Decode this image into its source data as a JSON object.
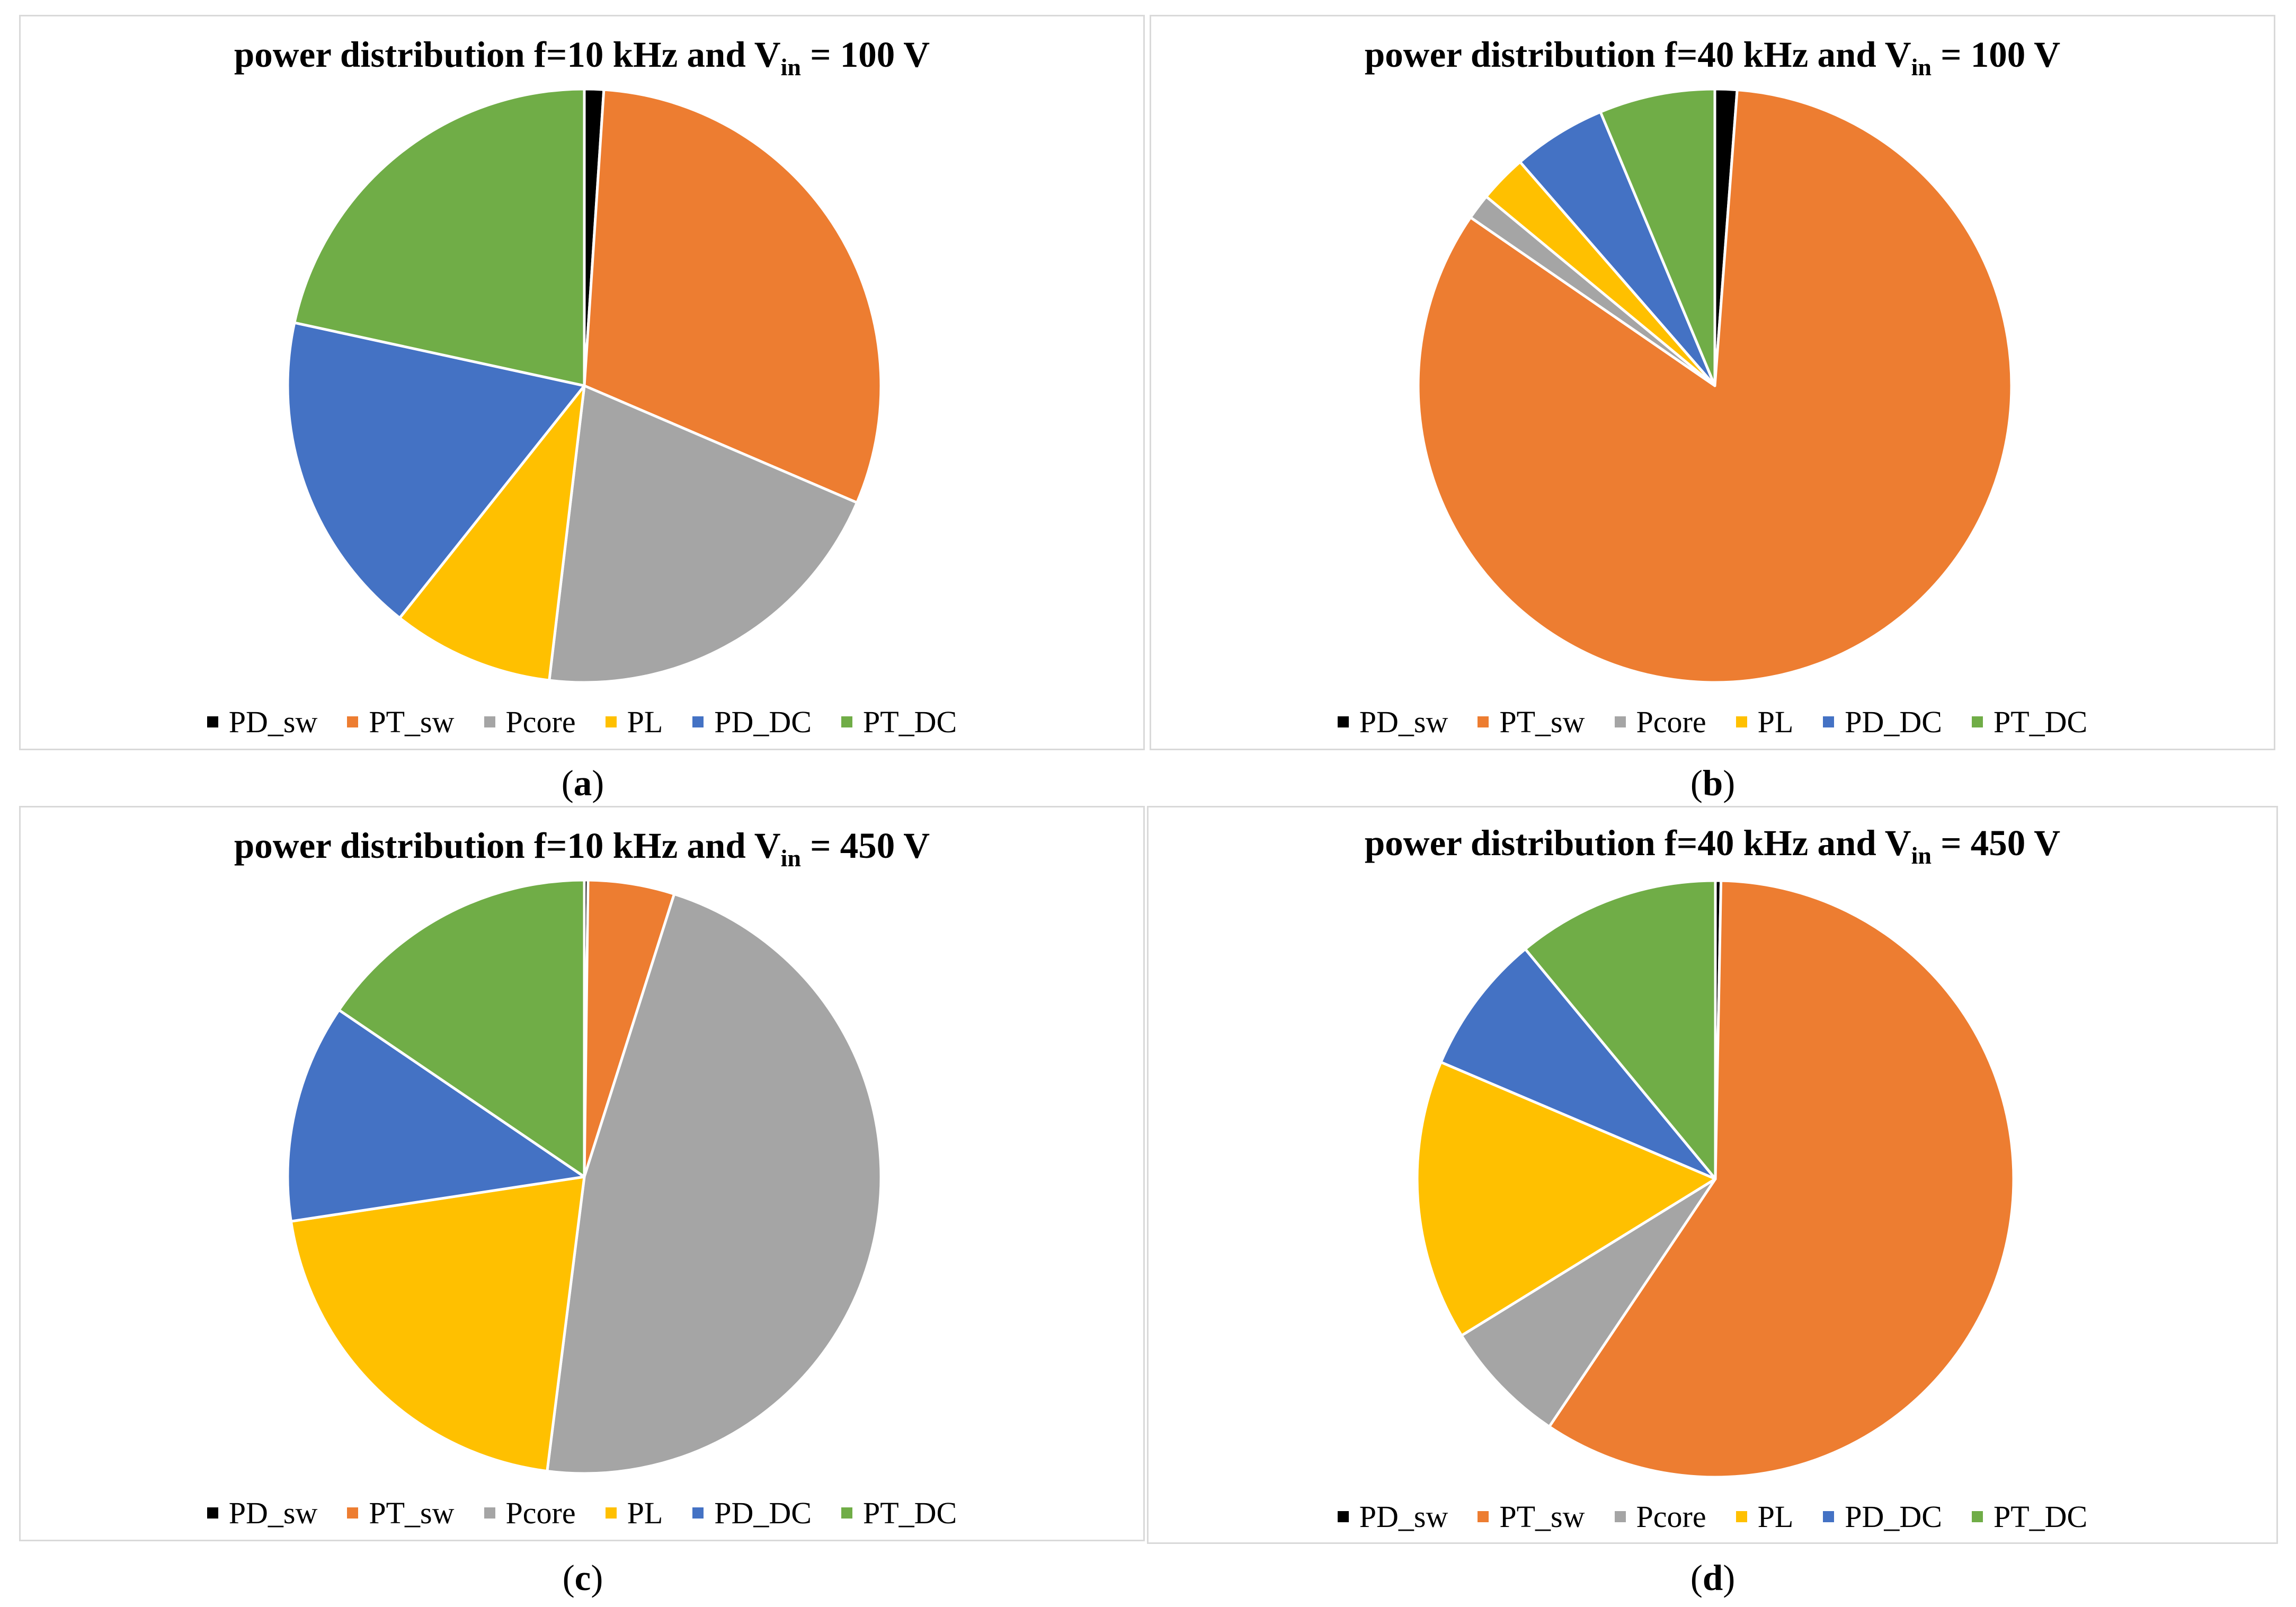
{
  "chart_data": [
    {
      "type": "pie",
      "title": "power distribution f=10 kHz and V",
      "title_sub": "in",
      "title_tail": " = 100 V",
      "caption_letter": "a",
      "categories": [
        "PD_sw",
        "PT_sw",
        "Pcore",
        "PL",
        "PD_DC",
        "PT_DC"
      ],
      "values": [
        1.0,
        29.0,
        19.5,
        8.4,
        16.9,
        20.6
      ],
      "colors": [
        "#000000",
        "#ED7D31",
        "#A5A5A5",
        "#FFC000",
        "#4472C4",
        "#70AD47"
      ]
    },
    {
      "type": "pie",
      "title": "power distribution f=40 kHz and V",
      "title_sub": "in",
      "title_tail": " = 100 V",
      "caption_letter": "b",
      "categories": [
        "PD_sw",
        "PT_sw",
        "Pcore",
        "PL",
        "PD_DC",
        "PT_DC"
      ],
      "values": [
        1.2,
        83.4,
        1.4,
        2.6,
        5.1,
        6.3
      ],
      "colors": [
        "#000000",
        "#ED7D31",
        "#A5A5A5",
        "#FFC000",
        "#4472C4",
        "#70AD47"
      ]
    },
    {
      "type": "pie",
      "title": "power distribution f=10 kHz and V",
      "title_sub": "in",
      "title_tail": " = 450 V",
      "caption_letter": "c",
      "categories": [
        "PD_sw",
        "PT_sw",
        "Pcore",
        "PL",
        "PD_DC",
        "PT_DC"
      ],
      "values": [
        0.2,
        4.7,
        47.1,
        20.6,
        11.9,
        15.5
      ],
      "colors": [
        "#000000",
        "#ED7D31",
        "#A5A5A5",
        "#FFC000",
        "#4472C4",
        "#70AD47"
      ]
    },
    {
      "type": "pie",
      "title": "power distribution f=40 kHz and V",
      "title_sub": "in",
      "title_tail": " = 450 V",
      "caption_letter": "d",
      "categories": [
        "PD_sw",
        "PT_sw",
        "Pcore",
        "PL",
        "PD_DC",
        "PT_DC"
      ],
      "values": [
        0.3,
        59.1,
        6.8,
        15.2,
        7.6,
        11.0
      ],
      "colors": [
        "#000000",
        "#ED7D31",
        "#A5A5A5",
        "#FFC000",
        "#4472C4",
        "#70AD47"
      ]
    }
  ]
}
